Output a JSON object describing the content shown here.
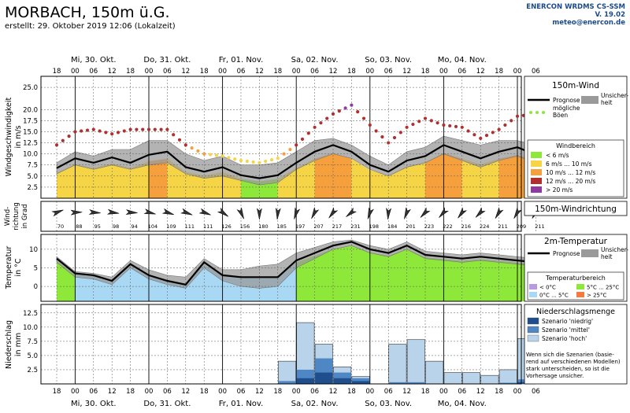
{
  "header": {
    "title": "MORBACH, 150m ü.G.",
    "created": "erstellt: 29. Oktober 2019 12:06 (Lokalzeit)",
    "brand": "ENERCON WRDMS CS-SSM",
    "version": "V. 19.02",
    "email": "meteo@enercon.de"
  },
  "time_axis": {
    "hours_top": [
      "18",
      "00",
      "06",
      "12",
      "18",
      "00",
      "06",
      "12",
      "18",
      "00",
      "06",
      "12",
      "18",
      "00",
      "06",
      "12",
      "18",
      "00",
      "06",
      "12",
      "18",
      "00",
      "06",
      "12",
      "18",
      "00",
      "06"
    ],
    "hours_bottom": [
      "18",
      "00",
      "06",
      "12",
      "18",
      "00",
      "06",
      "12",
      "18",
      "00",
      "06",
      "12",
      "18",
      "00",
      "06",
      "12",
      "18",
      "00",
      "06",
      "12",
      "18",
      "00",
      "06",
      "12",
      "18",
      "00",
      "06"
    ],
    "days": [
      "Mi, 30. Okt.",
      "Do, 31. Okt.",
      "Fr, 01. Nov.",
      "Sa, 02. Nov.",
      "So, 03. Nov.",
      "Mo, 04. Nov."
    ]
  },
  "panels": {
    "wind": {
      "ylabel1": "Windgeschwindigkeit",
      "ylabel2": "in m/s",
      "yticks": [
        "2.5",
        "5.0",
        "7.5",
        "10.0",
        "12.5",
        "15.0",
        "17.5",
        "20.0",
        "25.0"
      ]
    },
    "direction": {
      "ylabel1": "Wind-",
      "ylabel2": "richtung",
      "ylabel3": "in Grad"
    },
    "temperature": {
      "ylabel1": "Temperatur",
      "ylabel2": "in °C",
      "yticks": [
        "0",
        "5",
        "10"
      ]
    },
    "precipitation": {
      "ylabel1": "Niederschlag",
      "ylabel2": "in mm",
      "yticks": [
        "2.5",
        "5.0",
        "7.5",
        "10.0",
        "12.5"
      ]
    }
  },
  "legends": {
    "wind": {
      "title": "150m-Wind",
      "forecast": "Prognose",
      "unc1": "Unsicher-",
      "unc2": "heit",
      "gust1": "mögliche",
      "gust2": "Böen"
    },
    "wind_range": {
      "title": "Windbereich",
      "items": [
        {
          "label": "<  6 m/s",
          "color": "#8ee83a"
        },
        {
          "label": "6 m/s ... 10 m/s",
          "color": "#f5d445"
        },
        {
          "label": "10 m/s ... 12 m/s",
          "color": "#f5a03c"
        },
        {
          "label": "12 m/s ... 20 m/s",
          "color": "#b03030"
        },
        {
          "label": "> 20 m/s",
          "color": "#8e3aa0"
        }
      ]
    },
    "direction": {
      "title": "150m-Windrichtung"
    },
    "temperature": {
      "title": "2m-Temperatur",
      "forecast": "Prognose",
      "unc1": "Unsicher-",
      "unc2": "heit"
    },
    "temp_range": {
      "title": "Temperaturbereich",
      "items": [
        {
          "label": "< 0°C",
          "color": "#b89ae0"
        },
        {
          "label": "5°C ... 25°C",
          "color": "#8ee83a"
        },
        {
          "label": "0°C ... 5°C",
          "color": "#a9d8f5"
        },
        {
          "label": "> 25°C",
          "color": "#f57a3c"
        }
      ]
    },
    "precipitation": {
      "title": "Niederschlagsmenge",
      "items": [
        {
          "label": "Szenario 'niedrig'",
          "color": "#1f4e8c"
        },
        {
          "label": "Szenario 'mittel'",
          "color": "#4f87c4"
        },
        {
          "label": "Szenario 'hoch'",
          "color": "#b9d3ea"
        }
      ],
      "note1": "Wenn sich die Szenarien (basie-",
      "note2": "rend auf verschiedenen Modellen)",
      "note3": "stark unterscheiden, so ist die",
      "note4": "Vorhersage unsicher."
    }
  },
  "colors": {
    "green": "#8ee83a",
    "yellow": "#f5d445",
    "orange": "#f5a03c",
    "red": "#b03030",
    "purple": "#8e3aa0",
    "lightblue": "#a9d8f5",
    "gray": "#9a9a9a",
    "prec_low": "#1f4e8c",
    "prec_mid": "#4f87c4",
    "prec_high": "#b9d3ea"
  },
  "chart_data": [
    {
      "type": "area",
      "title": "150m-Wind",
      "ylabel": "Windgeschwindigkeit in m/s",
      "ylim": [
        0,
        27.5
      ],
      "x_hours": [
        0,
        6,
        12,
        18,
        24,
        30,
        36,
        42,
        48,
        54,
        60,
        66,
        72,
        78,
        84,
        90,
        96,
        102,
        108,
        114,
        120,
        126,
        132,
        138,
        144,
        150,
        156
      ],
      "forecast": [
        6.8,
        9.0,
        8.0,
        9.2,
        8.0,
        9.8,
        10.5,
        7.0,
        6.0,
        7.0,
        5.2,
        4.5,
        5.2,
        8.0,
        10.5,
        12.0,
        10.5,
        7.5,
        6.0,
        8.5,
        9.5,
        12.0,
        10.5,
        9.0,
        10.5,
        11.5,
        9.8
      ],
      "uncertainty_low": [
        5.5,
        7.5,
        6.5,
        7.5,
        6.5,
        7.5,
        8.0,
        5.5,
        4.5,
        5.0,
        4.0,
        3.0,
        3.5,
        6.5,
        8.5,
        10.0,
        9.0,
        6.5,
        5.0,
        7.0,
        8.0,
        10.0,
        8.5,
        7.0,
        8.5,
        9.5,
        8.0
      ],
      "uncertainty_high": [
        8.0,
        10.5,
        9.5,
        11.0,
        11.0,
        13.0,
        13.0,
        10.0,
        8.5,
        9.5,
        7.5,
        7.5,
        8.0,
        10.5,
        13.0,
        13.5,
        12.0,
        9.5,
        7.5,
        10.5,
        11.5,
        14.0,
        13.0,
        12.0,
        13.0,
        13.0,
        12.0
      ],
      "gusts": [
        12.0,
        15.0,
        15.5,
        14.5,
        15.5,
        15.5,
        15.5,
        12.0,
        10.0,
        9.5,
        8.5,
        8.0,
        9.0,
        12.0,
        16.0,
        19.0,
        21.0,
        16.5,
        12.5,
        16.0,
        18.0,
        16.5,
        16.0,
        13.5,
        15.5,
        18.5,
        19.0
      ]
    },
    {
      "type": "scatter",
      "title": "150m-Windrichtung",
      "x_hours": [
        0,
        6,
        12,
        18,
        24,
        30,
        36,
        42,
        48,
        54,
        60,
        66,
        72,
        78,
        84,
        90,
        96,
        102,
        108,
        114,
        120,
        126,
        132,
        138,
        144,
        150,
        156
      ],
      "direction_deg": [
        70,
        88,
        95,
        98,
        94,
        104,
        109,
        111,
        111,
        126,
        156,
        180,
        185,
        197,
        207,
        217,
        231,
        198,
        184,
        201,
        223,
        222,
        216,
        224,
        211,
        209,
        211
      ]
    },
    {
      "type": "area",
      "title": "2m-Temperatur",
      "ylabel": "Temperatur in °C",
      "ylim": [
        -4,
        14
      ],
      "x_hours": [
        0,
        6,
        12,
        18,
        24,
        30,
        36,
        42,
        48,
        54,
        60,
        66,
        72,
        78,
        84,
        90,
        96,
        102,
        108,
        114,
        120,
        126,
        132,
        138,
        144,
        150,
        156
      ],
      "forecast": [
        7.5,
        3.5,
        3.0,
        1.5,
        6.0,
        3.0,
        1.5,
        0.5,
        6.5,
        3.0,
        2.5,
        2.5,
        2.5,
        7.0,
        9.0,
        11.0,
        12.0,
        10.0,
        9.0,
        11.0,
        8.5,
        8.0,
        7.5,
        8.0,
        7.5,
        7.0,
        6.5
      ],
      "uncertainty_low": [
        6.5,
        2.5,
        2.0,
        0.5,
        5.0,
        2.0,
        0.5,
        -0.5,
        5.0,
        1.5,
        0.0,
        -0.5,
        0.0,
        5.0,
        7.5,
        10.0,
        11.0,
        9.0,
        8.0,
        10.0,
        7.5,
        7.0,
        6.5,
        7.0,
        6.5,
        6.0,
        5.5
      ],
      "uncertainty_high": [
        8.0,
        4.0,
        3.5,
        2.5,
        7.0,
        4.5,
        3.0,
        2.5,
        7.5,
        4.5,
        4.5,
        5.5,
        6.0,
        9.0,
        10.5,
        12.0,
        12.5,
        11.0,
        10.0,
        12.0,
        9.5,
        9.0,
        8.5,
        9.0,
        8.5,
        8.0,
        7.5
      ]
    },
    {
      "type": "bar",
      "title": "Niederschlagsmenge",
      "ylabel": "Niederschlag in mm",
      "ylim": [
        0,
        14
      ],
      "x_hours": [
        78,
        84,
        90,
        96,
        102,
        108,
        114,
        120,
        126,
        132,
        138,
        144,
        150,
        156
      ],
      "series": [
        {
          "name": "Szenario 'niedrig'",
          "values": [
            0.0,
            1.0,
            2.0,
            1.0,
            0.5,
            0.0,
            0.0,
            0.0,
            0.0,
            0.0,
            0.0,
            0.0,
            0.0,
            0.3
          ]
        },
        {
          "name": "Szenario 'mittel'",
          "values": [
            0.5,
            2.5,
            4.5,
            2.0,
            1.0,
            0.0,
            0.3,
            0.3,
            0.0,
            0.0,
            0.0,
            0.0,
            0.2,
            0.8
          ]
        },
        {
          "name": "Szenario 'hoch'",
          "values": [
            4.0,
            10.8,
            7.0,
            3.0,
            1.3,
            0.0,
            7.0,
            7.8,
            4.0,
            2.0,
            2.0,
            1.5,
            2.5,
            8.0
          ]
        }
      ]
    }
  ]
}
